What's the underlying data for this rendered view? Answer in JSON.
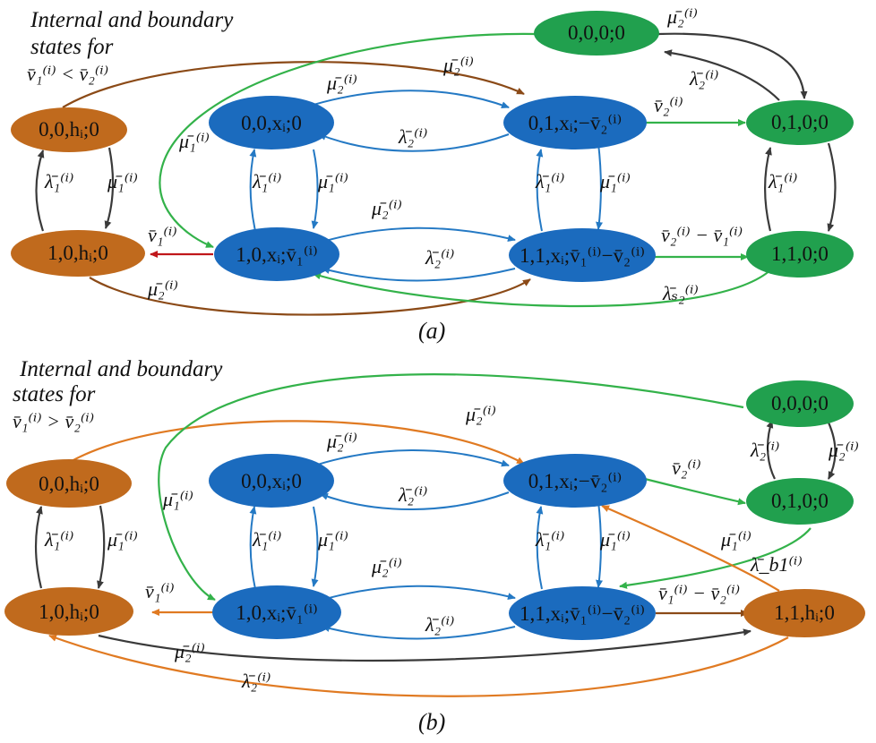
{
  "colors": {
    "blue": "#1B6BBE",
    "brown": "#C06A1D",
    "green": "#21A04E",
    "dark_arrow": "#3a3a3a",
    "blue_arrow": "#2479C4",
    "brown_arrow": "#8B4A17",
    "orange_arrow": "#E07A22",
    "green_arrow": "#33B24A",
    "red_arrow": "#C0171B"
  },
  "panel_a": {
    "title_lines": [
      "Internal and boundary",
      "states for",
      "v̄₁⁽ⁱ⁾ < v̄₂⁽ⁱ⁾"
    ],
    "label": "(a)",
    "nodes": {
      "n00h": "0,0,hᵢ;0",
      "n10h": "1,0,hᵢ;0",
      "n00x": "0,0,xᵢ;0",
      "n10x": "1,0,xᵢ;v̄₁⁽ⁱ⁾",
      "n01x": "0,1,xᵢ;−v̄₂⁽ⁱ⁾",
      "n11x": "1,1,xᵢ;v̄₁⁽ⁱ⁾−v̄₂⁽ⁱ⁾",
      "n000": "0,0,0;0",
      "n010": "0,1,0;0",
      "n110": "1,1,0;0"
    }
  },
  "panel_b": {
    "title_lines": [
      "Internal and boundary",
      "states for",
      "v̄₁⁽ⁱ⁾ > v̄₂⁽ⁱ⁾"
    ],
    "label": "(b)",
    "nodes": {
      "n00h": "0,0,hᵢ;0",
      "n10h": "1,0,hᵢ;0",
      "n00x": "0,0,xᵢ;0",
      "n10x": "1,0,xᵢ;v̄₁⁽ⁱ⁾",
      "n01x": "0,1,xᵢ;−v̄₂⁽ⁱ⁾",
      "n11x": "1,1,xᵢ;v̄₁⁽ⁱ⁾−v̄₂⁽ⁱ⁾",
      "n000": "0,0,0;0",
      "n010": "0,1,0;0",
      "n11h": "1,1,hᵢ;0"
    }
  },
  "symbols": {
    "mu1": "μ̄₁⁽ⁱ⁾",
    "mu2": "μ̄₂⁽ⁱ⁾",
    "lambda1": "λ̄₁⁽ⁱ⁾",
    "lambda2": "λ̄₂⁽ⁱ⁾",
    "lambda_s2": "λ̄ₛ₂⁽ⁱ⁾",
    "lambda_b1": "λ̄_b1⁽ⁱ⁾",
    "v1": "v̄₁⁽ⁱ⁾",
    "v2": "v̄₂⁽ⁱ⁾",
    "v2_minus_v1": "v̄₂⁽ⁱ⁾ − v̄₁⁽ⁱ⁾",
    "v1_minus_v2": "v̄₁⁽ⁱ⁾ − v̄₂⁽ⁱ⁾"
  }
}
